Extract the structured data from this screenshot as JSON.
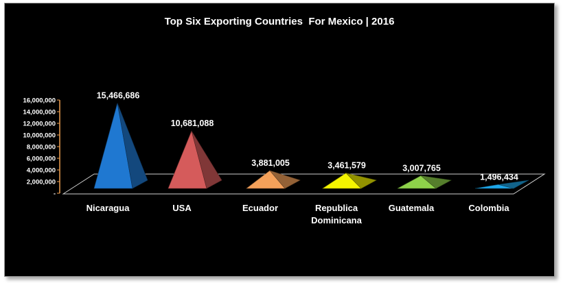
{
  "chart_data": {
    "type": "bar",
    "title": "Top Six Exporting Countries  For Mexico | 2016",
    "categories": [
      "Nicaragua",
      "USA",
      "Ecuador",
      "Republica Dominicana",
      "Guatemala",
      "Colombia"
    ],
    "category_lines": [
      [
        "Nicaragua"
      ],
      [
        "USA"
      ],
      [
        "Ecuador"
      ],
      [
        "Republica",
        "Dominicana"
      ],
      [
        "Guatemala"
      ],
      [
        "Colombia"
      ]
    ],
    "values": [
      15466686,
      10681088,
      3881005,
      3461579,
      3007765,
      1496434
    ],
    "value_labels": [
      "15,466,686",
      "10,681,088",
      "3,881,005",
      "3,461,579",
      "3,007,765",
      "1,496,434"
    ],
    "colors": [
      "#1f78d1",
      "#d55b5b",
      "#f5a15a",
      "#f4f400",
      "#8ed24a",
      "#1ea7ea"
    ],
    "ylim": [
      0,
      16000000
    ],
    "yticks": [
      0,
      2000000,
      4000000,
      6000000,
      8000000,
      10000000,
      12000000,
      14000000,
      16000000
    ],
    "ytick_labels": [
      "-",
      "2,000,000",
      "4,000,000",
      "6,000,000",
      "8,000,000",
      "10,000,000",
      "12,000,000",
      "14,000,000",
      "16,000,000"
    ],
    "xlabel": "",
    "ylabel": "",
    "grid": false,
    "legend": "none",
    "shape": "3d-pyramid",
    "background": "#000000",
    "axis_color": "#f0a050"
  }
}
